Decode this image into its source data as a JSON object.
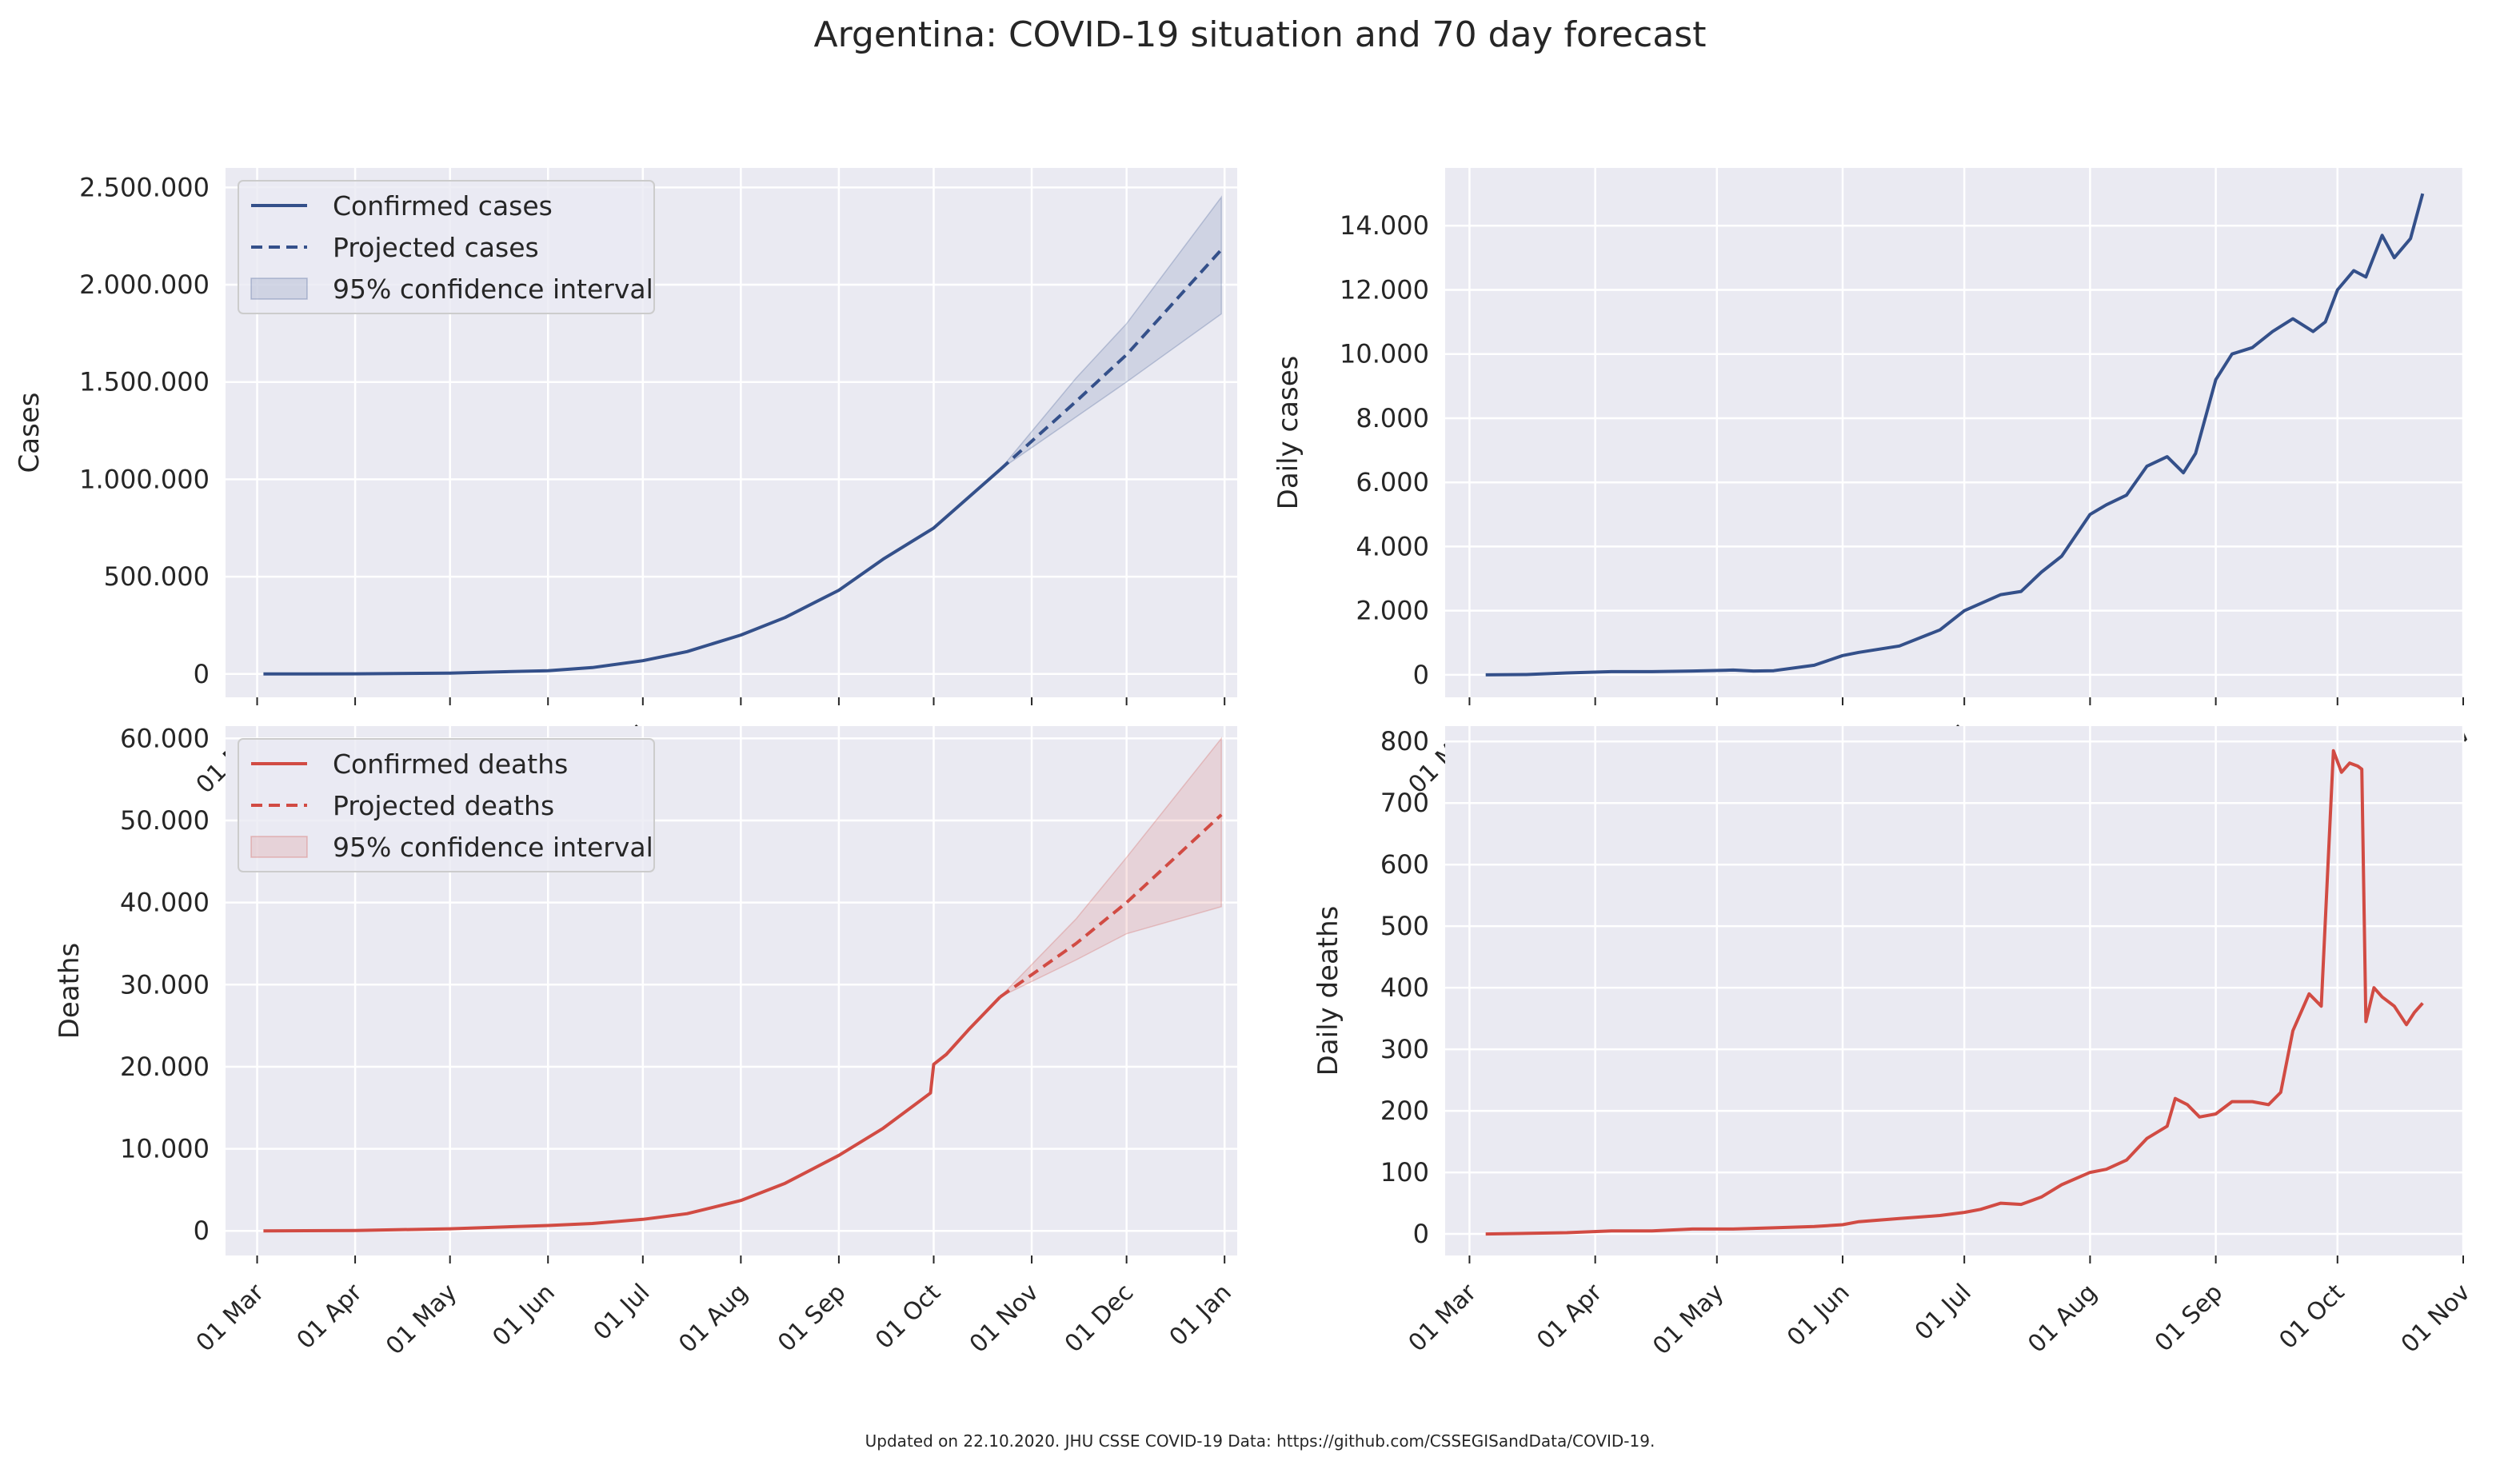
{
  "figure": {
    "title": "Argentina: COVID-19 situation and 70 day forecast",
    "footer": "Updated on 22.10.2020. JHU CSSE COVID-19 Data: https://github.com/CSSEGISandData/COVID-19."
  },
  "colors": {
    "cases": "#34508a",
    "deaths": "#d14b43",
    "plot_bg": "#eaeaf2",
    "grid": "#ffffff"
  },
  "chart_data": [
    {
      "id": "cum_cases",
      "type": "line",
      "xlabel": "",
      "ylabel": "Cases",
      "xlim": [
        "2020-02-20",
        "2021-01-05"
      ],
      "ylim": [
        -120000,
        2600000
      ],
      "yticks": [
        0,
        500000,
        1000000,
        1500000,
        2000000,
        2500000
      ],
      "ytick_labels": [
        "0",
        "500.000",
        "1.000.000",
        "1.500.000",
        "2.000.000",
        "2.500.000"
      ],
      "xticks": [
        "2020-03-01",
        "2020-04-01",
        "2020-05-01",
        "2020-06-01",
        "2020-07-01",
        "2020-08-01",
        "2020-09-01",
        "2020-10-01",
        "2020-11-01",
        "2020-12-01",
        "2021-01-01"
      ],
      "xtick_labels": [
        "01 Mar",
        "01 Apr",
        "01 May",
        "01 Jun",
        "01 Jul",
        "01 Aug",
        "01 Sep",
        "01 Oct",
        "01 Nov",
        "01 Dec",
        "01 Jan"
      ],
      "grid": true,
      "legend": "top-left",
      "legend_entries": [
        "Confirmed cases",
        "Projected cases",
        "95% confidence interval"
      ],
      "series": [
        {
          "name": "Confirmed cases",
          "style": "solid",
          "x": [
            "2020-03-03",
            "2020-04-01",
            "2020-05-01",
            "2020-06-01",
            "2020-06-15",
            "2020-07-01",
            "2020-07-15",
            "2020-08-01",
            "2020-08-15",
            "2020-09-01",
            "2020-09-15",
            "2020-10-01",
            "2020-10-22"
          ],
          "y": [
            0,
            1000,
            4500,
            17000,
            33000,
            68000,
            115000,
            200000,
            290000,
            430000,
            590000,
            750000,
            1050000
          ]
        },
        {
          "name": "Projected cases",
          "style": "dashed",
          "x": [
            "2020-10-22",
            "2020-11-15",
            "2020-12-01",
            "2020-12-31"
          ],
          "y": [
            1050000,
            1400000,
            1640000,
            2180000
          ]
        },
        {
          "name": "95% confidence interval",
          "style": "band",
          "x": [
            "2020-10-22",
            "2020-11-15",
            "2020-12-01",
            "2020-12-31"
          ],
          "lower": [
            1050000,
            1320000,
            1500000,
            1850000
          ],
          "upper": [
            1050000,
            1520000,
            1800000,
            2450000
          ]
        }
      ]
    },
    {
      "id": "daily_cases",
      "type": "line",
      "xlabel": "",
      "ylabel": "Daily cases",
      "xlim": [
        "2020-02-24",
        "2020-11-01"
      ],
      "ylim": [
        -700,
        15800
      ],
      "yticks": [
        0,
        2000,
        4000,
        6000,
        8000,
        10000,
        12000,
        14000
      ],
      "ytick_labels": [
        "0",
        "2.000",
        "4.000",
        "6.000",
        "8.000",
        "10.000",
        "12.000",
        "14.000"
      ],
      "xticks": [
        "2020-03-01",
        "2020-04-01",
        "2020-05-01",
        "2020-06-01",
        "2020-07-01",
        "2020-08-01",
        "2020-09-01",
        "2020-10-01",
        "2020-11-01"
      ],
      "xtick_labels": [
        "01 Mar",
        "01 Apr",
        "01 May",
        "01 Jun",
        "01 Jul",
        "01 Aug",
        "01 Sep",
        "01 Oct",
        "01 Nov"
      ],
      "grid": true,
      "series": [
        {
          "name": "",
          "x": [
            "2020-03-05",
            "2020-03-15",
            "2020-03-25",
            "2020-04-05",
            "2020-04-15",
            "2020-04-25",
            "2020-05-05",
            "2020-05-10",
            "2020-05-15",
            "2020-05-25",
            "2020-06-01",
            "2020-06-05",
            "2020-06-15",
            "2020-06-25",
            "2020-07-01",
            "2020-07-10",
            "2020-07-15",
            "2020-07-20",
            "2020-07-25",
            "2020-08-01",
            "2020-08-05",
            "2020-08-10",
            "2020-08-15",
            "2020-08-20",
            "2020-08-24",
            "2020-08-27",
            "2020-09-01",
            "2020-09-05",
            "2020-09-10",
            "2020-09-15",
            "2020-09-20",
            "2020-09-25",
            "2020-09-28",
            "2020-10-01",
            "2020-10-05",
            "2020-10-08",
            "2020-10-12",
            "2020-10-15",
            "2020-10-19",
            "2020-10-22"
          ],
          "y": [
            0,
            10,
            60,
            100,
            100,
            120,
            150,
            120,
            130,
            300,
            600,
            700,
            900,
            1400,
            2000,
            2500,
            2600,
            3200,
            3700,
            5000,
            5300,
            5600,
            6500,
            6800,
            6300,
            6900,
            9200,
            10000,
            10200,
            10700,
            11100,
            10700,
            11000,
            12000,
            12600,
            12400,
            13700,
            13000,
            13600,
            15000
          ]
        }
      ]
    },
    {
      "id": "cum_deaths",
      "type": "line",
      "xlabel": "",
      "ylabel": "Deaths",
      "xlim": [
        "2020-02-20",
        "2021-01-05"
      ],
      "ylim": [
        -3000,
        61500
      ],
      "yticks": [
        0,
        10000,
        20000,
        30000,
        40000,
        50000,
        60000
      ],
      "ytick_labels": [
        "0",
        "10.000",
        "20.000",
        "30.000",
        "40.000",
        "50.000",
        "60.000"
      ],
      "xticks": [
        "2020-03-01",
        "2020-04-01",
        "2020-05-01",
        "2020-06-01",
        "2020-07-01",
        "2020-08-01",
        "2020-09-01",
        "2020-10-01",
        "2020-11-01",
        "2020-12-01",
        "2021-01-01"
      ],
      "xtick_labels": [
        "01 Mar",
        "01 Apr",
        "01 May",
        "01 Jun",
        "01 Jul",
        "01 Aug",
        "01 Sep",
        "01 Oct",
        "01 Nov",
        "01 Dec",
        "01 Jan"
      ],
      "grid": true,
      "legend": "top-left",
      "legend_entries": [
        "Confirmed deaths",
        "Projected deaths",
        "95% confidence interval"
      ],
      "series": [
        {
          "name": "Confirmed deaths",
          "style": "solid",
          "x": [
            "2020-03-03",
            "2020-04-01",
            "2020-05-01",
            "2020-06-01",
            "2020-06-15",
            "2020-07-01",
            "2020-07-15",
            "2020-08-01",
            "2020-08-15",
            "2020-09-01",
            "2020-09-15",
            "2020-09-30",
            "2020-10-01",
            "2020-10-05",
            "2020-10-12",
            "2020-10-22"
          ],
          "y": [
            0,
            50,
            250,
            650,
            900,
            1400,
            2100,
            3700,
            5800,
            9200,
            12500,
            16800,
            20300,
            21500,
            24500,
            28500
          ]
        },
        {
          "name": "Projected deaths",
          "style": "dashed",
          "x": [
            "2020-10-22",
            "2020-11-15",
            "2020-12-01",
            "2020-12-31"
          ],
          "y": [
            28500,
            35000,
            40000,
            50700
          ]
        },
        {
          "name": "95% confidence interval",
          "style": "band",
          "x": [
            "2020-10-22",
            "2020-11-15",
            "2020-12-01",
            "2020-12-31"
          ],
          "lower": [
            28500,
            33000,
            36200,
            39500
          ],
          "upper": [
            28500,
            38000,
            45500,
            60000
          ]
        }
      ]
    },
    {
      "id": "daily_deaths",
      "type": "line",
      "xlabel": "",
      "ylabel": "Daily deaths",
      "xlim": [
        "2020-02-24",
        "2020-11-01"
      ],
      "ylim": [
        -35,
        825
      ],
      "yticks": [
        0,
        100,
        200,
        300,
        400,
        500,
        600,
        700,
        800
      ],
      "ytick_labels": [
        "0",
        "100",
        "200",
        "300",
        "400",
        "500",
        "600",
        "700",
        "800"
      ],
      "xticks": [
        "2020-03-01",
        "2020-04-01",
        "2020-05-01",
        "2020-06-01",
        "2020-07-01",
        "2020-08-01",
        "2020-09-01",
        "2020-10-01",
        "2020-11-01"
      ],
      "xtick_labels": [
        "01 Mar",
        "01 Apr",
        "01 May",
        "01 Jun",
        "01 Jul",
        "01 Aug",
        "01 Sep",
        "01 Oct",
        "01 Nov"
      ],
      "grid": true,
      "series": [
        {
          "name": "",
          "x": [
            "2020-03-05",
            "2020-03-25",
            "2020-04-05",
            "2020-04-15",
            "2020-04-25",
            "2020-05-05",
            "2020-05-15",
            "2020-05-25",
            "2020-06-01",
            "2020-06-05",
            "2020-06-15",
            "2020-06-25",
            "2020-07-01",
            "2020-07-05",
            "2020-07-10",
            "2020-07-15",
            "2020-07-20",
            "2020-07-25",
            "2020-08-01",
            "2020-08-05",
            "2020-08-10",
            "2020-08-15",
            "2020-08-20",
            "2020-08-22",
            "2020-08-25",
            "2020-08-28",
            "2020-09-01",
            "2020-09-05",
            "2020-09-10",
            "2020-09-14",
            "2020-09-17",
            "2020-09-20",
            "2020-09-24",
            "2020-09-27",
            "2020-09-30",
            "2020-10-02",
            "2020-10-04",
            "2020-10-06",
            "2020-10-07",
            "2020-10-08",
            "2020-10-10",
            "2020-10-12",
            "2020-10-15",
            "2020-10-18",
            "2020-10-20",
            "2020-10-22"
          ],
          "y": [
            0,
            2,
            5,
            5,
            8,
            8,
            10,
            12,
            15,
            20,
            25,
            30,
            35,
            40,
            50,
            48,
            60,
            80,
            100,
            105,
            120,
            155,
            175,
            220,
            210,
            190,
            195,
            215,
            215,
            210,
            230,
            330,
            390,
            370,
            785,
            750,
            765,
            760,
            755,
            345,
            400,
            385,
            370,
            340,
            360,
            375
          ]
        }
      ]
    }
  ]
}
